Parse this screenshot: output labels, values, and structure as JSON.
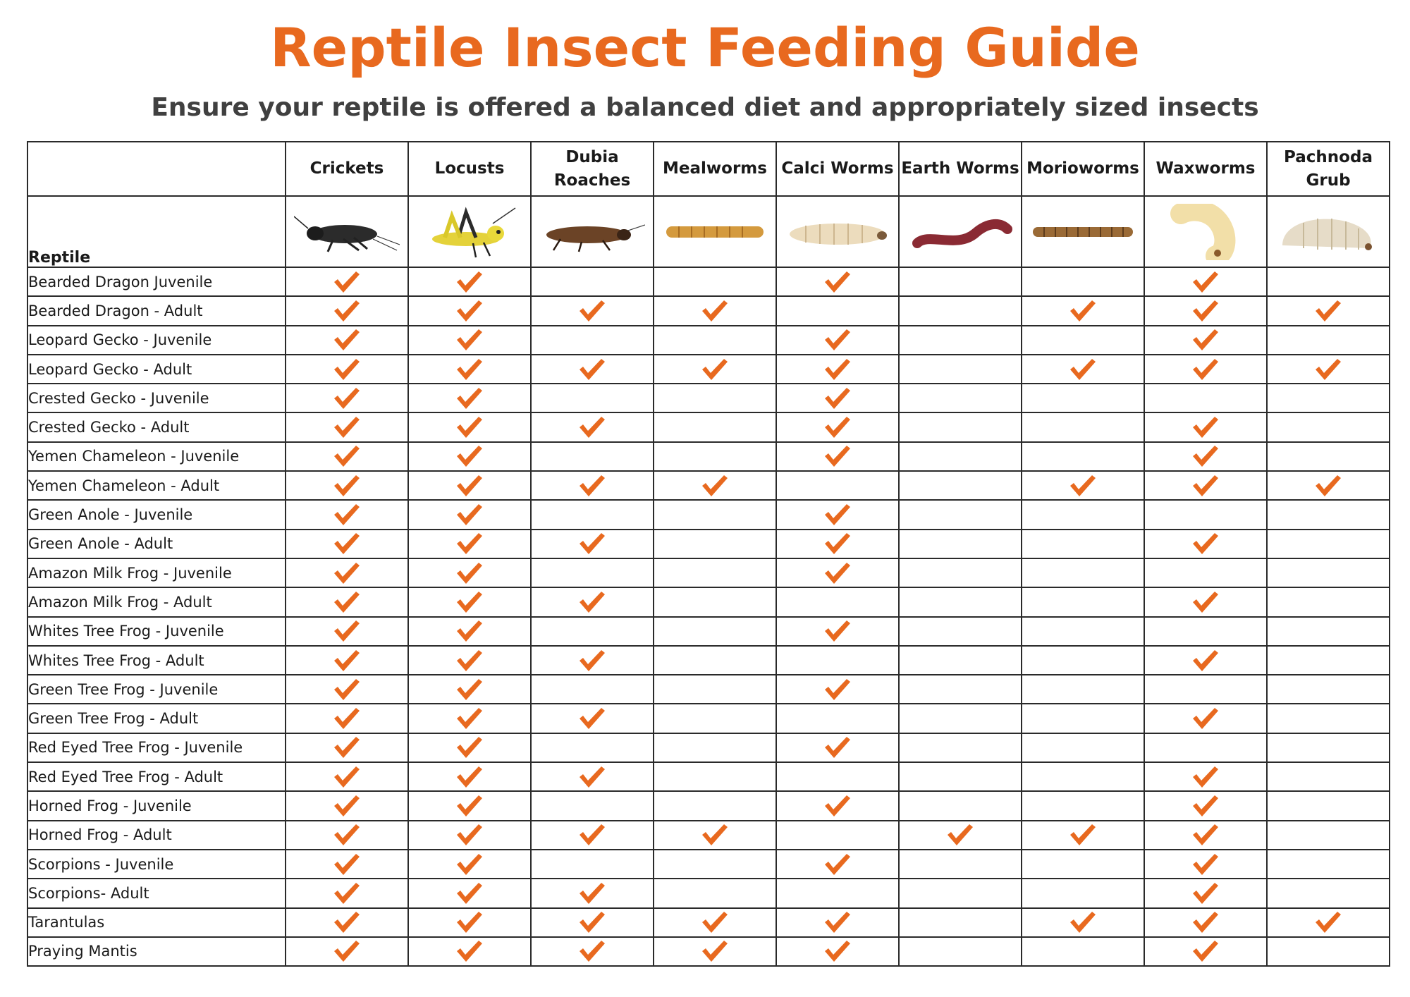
{
  "title": "Reptile Insect Feeding Guide",
  "subtitle": "Ensure your reptile is offered a balanced diet and appropriately sized insects",
  "colors": {
    "accent": "#e8691f",
    "text": "#1a1a1a",
    "subtitle": "#404040",
    "border": "#2a2a2a"
  },
  "check_icon": "orange-checkmark-icon",
  "reptile_header": "Reptile",
  "insects": [
    {
      "label": "Crickets",
      "icon": "cricket-image"
    },
    {
      "label": "Locusts",
      "icon": "locust-image"
    },
    {
      "label": "Dubia Roaches",
      "icon": "dubia-roach-image"
    },
    {
      "label": "Mealworms",
      "icon": "mealworm-image"
    },
    {
      "label": "Calci Worms",
      "icon": "calci-worm-image"
    },
    {
      "label": "Earth Worms",
      "icon": "earth-worm-image"
    },
    {
      "label": "Morioworms",
      "icon": "morioworm-image"
    },
    {
      "label": "Waxworms",
      "icon": "waxworm-image"
    },
    {
      "label": "Pachnoda Grub",
      "icon": "pachnoda-grub-image"
    }
  ],
  "rows": [
    {
      "name": "Bearded Dragon Juvenile",
      "checks": [
        1,
        1,
        0,
        0,
        1,
        0,
        0,
        1,
        0
      ]
    },
    {
      "name": "Bearded Dragon - Adult",
      "checks": [
        1,
        1,
        1,
        1,
        0,
        0,
        1,
        1,
        1
      ]
    },
    {
      "name": "Leopard Gecko - Juvenile",
      "checks": [
        1,
        1,
        0,
        0,
        1,
        0,
        0,
        1,
        0
      ]
    },
    {
      "name": "Leopard Gecko - Adult",
      "checks": [
        1,
        1,
        1,
        1,
        1,
        0,
        1,
        1,
        1
      ]
    },
    {
      "name": "Crested Gecko - Juvenile",
      "checks": [
        1,
        1,
        0,
        0,
        1,
        0,
        0,
        0,
        0
      ]
    },
    {
      "name": "Crested Gecko - Adult",
      "checks": [
        1,
        1,
        1,
        0,
        1,
        0,
        0,
        1,
        0
      ]
    },
    {
      "name": "Yemen Chameleon - Juvenile",
      "checks": [
        1,
        1,
        0,
        0,
        1,
        0,
        0,
        1,
        0
      ]
    },
    {
      "name": "Yemen Chameleon - Adult",
      "checks": [
        1,
        1,
        1,
        1,
        0,
        0,
        1,
        1,
        1
      ]
    },
    {
      "name": "Green Anole -  Juvenile",
      "checks": [
        1,
        1,
        0,
        0,
        1,
        0,
        0,
        0,
        0
      ]
    },
    {
      "name": "Green Anole - Adult",
      "checks": [
        1,
        1,
        1,
        0,
        1,
        0,
        0,
        1,
        0
      ]
    },
    {
      "name": "Amazon Milk Frog - Juvenile",
      "checks": [
        1,
        1,
        0,
        0,
        1,
        0,
        0,
        0,
        0
      ]
    },
    {
      "name": "Amazon Milk Frog - Adult",
      "checks": [
        1,
        1,
        1,
        0,
        0,
        0,
        0,
        1,
        0
      ]
    },
    {
      "name": "Whites Tree Frog - Juvenile",
      "checks": [
        1,
        1,
        0,
        0,
        1,
        0,
        0,
        0,
        0
      ]
    },
    {
      "name": "Whites Tree Frog - Adult",
      "checks": [
        1,
        1,
        1,
        0,
        0,
        0,
        0,
        1,
        0
      ]
    },
    {
      "name": "Green Tree Frog - Juvenile",
      "checks": [
        1,
        1,
        0,
        0,
        1,
        0,
        0,
        0,
        0
      ]
    },
    {
      "name": "Green Tree Frog - Adult",
      "checks": [
        1,
        1,
        1,
        0,
        0,
        0,
        0,
        1,
        0
      ]
    },
    {
      "name": "Red Eyed Tree Frog - Juvenile",
      "checks": [
        1,
        1,
        0,
        0,
        1,
        0,
        0,
        0,
        0
      ]
    },
    {
      "name": "Red Eyed Tree Frog - Adult",
      "checks": [
        1,
        1,
        1,
        0,
        0,
        0,
        0,
        1,
        0
      ]
    },
    {
      "name": "Horned Frog - Juvenile",
      "checks": [
        1,
        1,
        0,
        0,
        1,
        0,
        0,
        1,
        0
      ]
    },
    {
      "name": "Horned Frog - Adult",
      "checks": [
        1,
        1,
        1,
        1,
        0,
        1,
        1,
        1,
        0
      ]
    },
    {
      "name": "Scorpions - Juvenile",
      "checks": [
        1,
        1,
        0,
        0,
        1,
        0,
        0,
        1,
        0
      ]
    },
    {
      "name": "Scorpions- Adult",
      "checks": [
        1,
        1,
        1,
        0,
        0,
        0,
        0,
        1,
        0
      ]
    },
    {
      "name": "Tarantulas",
      "checks": [
        1,
        1,
        1,
        1,
        1,
        0,
        1,
        1,
        1
      ]
    },
    {
      "name": "Praying Mantis",
      "checks": [
        1,
        1,
        1,
        1,
        1,
        0,
        0,
        1,
        0
      ]
    }
  ]
}
